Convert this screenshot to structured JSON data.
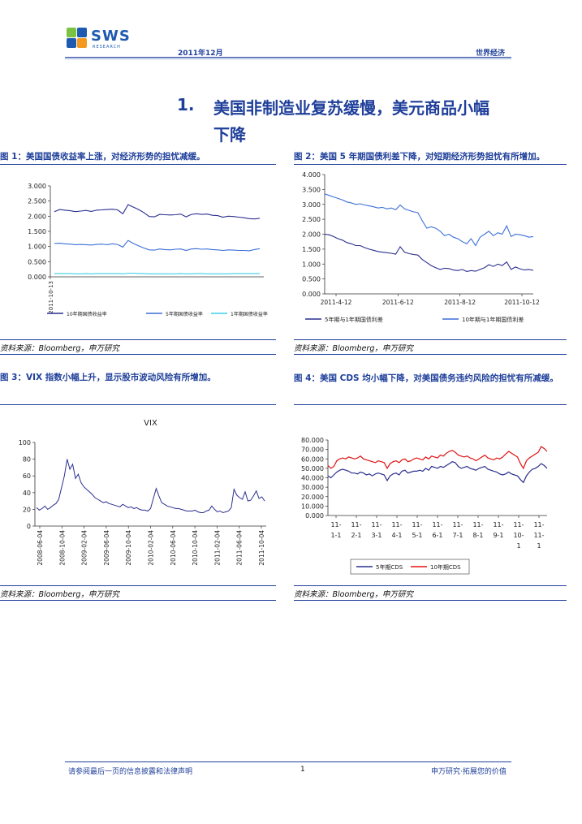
{
  "header": {
    "logo_text": "SWS",
    "logo_sub": "RESEARCH",
    "date": "2011年12月",
    "section": "世界经济"
  },
  "title": {
    "number": "1.",
    "line1": "美国非制造业复苏缓慢，美元商品小幅",
    "line2": "下降"
  },
  "figures": [
    {
      "caption": "图 1：美国国债收益率上涨，对经济形势的担忧减缓。",
      "source": "资料来源：Bloomberg，申万研究"
    },
    {
      "caption": "图 2：美国 5 年期国债利差下降，对短期经济形势担忧有所增加。",
      "source": "资料来源：Bloomberg，申万研究"
    },
    {
      "caption": "图 3：VIX 指数小幅上升，显示股市波动风险有所增加。",
      "source": "资料来源：Bloomberg，申万研究"
    },
    {
      "caption": "图 4：美国 CDS 均小幅下降，对美国债务违约风险的担忧有所减缓。",
      "source": "资料来源：Bloomberg，申万研究"
    }
  ],
  "footer": {
    "disclaimer": "请参阅最后一页的信息披露和法律声明",
    "page": "1",
    "slogan": "申万研究·拓展您的价值"
  },
  "colors": {
    "brand": "#1f3f9a",
    "logo_blue": "#1e5bb0",
    "logo_green": "#7cc242",
    "logo_orange": "#f39a1e",
    "navy_series": "#2b2f8f",
    "blue_series": "#3b6fd8",
    "cyan_series": "#3fd0e8",
    "red_series": "#e01010"
  },
  "chart_data": [
    {
      "type": "line",
      "title": "",
      "yticks": [
        "3.000",
        "2.500",
        "2.000",
        "1.500",
        "1.000",
        "0.500",
        "0.000"
      ],
      "ylim": [
        0,
        3
      ],
      "xticks": [
        "2011-10-13"
      ],
      "grid": false,
      "legend_position": "bottom",
      "series": [
        {
          "name": "10年期国债收益率",
          "color": "#2b2f8f",
          "values": [
            2.15,
            2.22,
            2.2,
            2.18,
            2.15,
            2.17,
            2.19,
            2.16,
            2.2,
            2.21,
            2.22,
            2.23,
            2.21,
            2.08,
            2.38,
            2.3,
            2.22,
            2.12,
            1.99,
            1.98,
            2.06,
            2.05,
            2.04,
            2.05,
            2.07,
            1.98,
            2.06,
            2.08,
            2.06,
            2.07,
            2.03,
            2.02,
            1.97,
            2.0,
            1.99,
            1.97,
            1.95,
            1.92,
            1.91,
            1.93
          ]
        },
        {
          "name": "5年期国债收益率",
          "color": "#3b6fd8",
          "values": [
            1.1,
            1.11,
            1.09,
            1.08,
            1.06,
            1.07,
            1.06,
            1.05,
            1.07,
            1.08,
            1.06,
            1.09,
            1.07,
            0.98,
            1.2,
            1.1,
            1.02,
            0.95,
            0.89,
            0.88,
            0.92,
            0.9,
            0.89,
            0.91,
            0.92,
            0.87,
            0.92,
            0.93,
            0.91,
            0.92,
            0.9,
            0.89,
            0.87,
            0.89,
            0.88,
            0.87,
            0.87,
            0.86,
            0.9,
            0.93
          ]
        },
        {
          "name": "1年期国债收益率",
          "color": "#3fd0e8",
          "values": [
            0.11,
            0.11,
            0.11,
            0.11,
            0.1,
            0.1,
            0.11,
            0.1,
            0.11,
            0.11,
            0.11,
            0.11,
            0.11,
            0.1,
            0.12,
            0.12,
            0.11,
            0.11,
            0.1,
            0.1,
            0.1,
            0.1,
            0.1,
            0.1,
            0.11,
            0.1,
            0.1,
            0.11,
            0.11,
            0.1,
            0.1,
            0.1,
            0.1,
            0.1,
            0.11,
            0.11,
            0.11,
            0.11,
            0.11,
            0.11
          ]
        }
      ]
    },
    {
      "type": "line",
      "title": "",
      "yticks": [
        "4.000",
        "3.500",
        "3.000",
        "2.500",
        "2.000",
        "1.500",
        "1.000",
        "0.500",
        "0.000"
      ],
      "ylim": [
        0,
        4
      ],
      "xticks": [
        "2011-4-12",
        "2011-6-12",
        "2011-8-12",
        "2011-10-12"
      ],
      "grid": false,
      "legend_position": "bottom",
      "series": [
        {
          "name": "5年期与1年期国债利差",
          "color": "#2b2f8f",
          "values": [
            2.0,
            1.98,
            1.92,
            1.85,
            1.8,
            1.72,
            1.68,
            1.62,
            1.62,
            1.55,
            1.5,
            1.46,
            1.42,
            1.4,
            1.38,
            1.36,
            1.33,
            1.58,
            1.4,
            1.35,
            1.32,
            1.3,
            1.15,
            1.05,
            0.95,
            0.88,
            0.82,
            0.86,
            0.85,
            0.8,
            0.78,
            0.82,
            0.75,
            0.78,
            0.76,
            0.82,
            0.88,
            0.98,
            0.92,
            1.0,
            0.95,
            1.07,
            0.82,
            0.9,
            0.84,
            0.8,
            0.82,
            0.79
          ]
        },
        {
          "name": "10年期与1年期国债利差",
          "color": "#3b6fd8",
          "values": [
            3.35,
            3.3,
            3.25,
            3.2,
            3.15,
            3.08,
            3.05,
            3.0,
            3.02,
            2.98,
            2.95,
            2.92,
            2.88,
            2.9,
            2.85,
            2.88,
            2.82,
            2.98,
            2.85,
            2.8,
            2.75,
            2.72,
            2.45,
            2.2,
            2.25,
            2.2,
            2.1,
            1.95,
            2.0,
            1.9,
            1.85,
            1.75,
            1.68,
            1.85,
            1.62,
            1.9,
            2.0,
            2.1,
            1.95,
            2.05,
            2.0,
            2.28,
            1.92,
            2.0,
            1.98,
            1.95,
            1.9,
            1.92
          ]
        }
      ]
    },
    {
      "type": "line",
      "title": "VIX",
      "yticks": [
        "100",
        "80",
        "60",
        "40",
        "20",
        "0"
      ],
      "ylim": [
        0,
        100
      ],
      "xticks": [
        "2008-06-04",
        "2008-10-04",
        "2009-02-04",
        "2009-06-04",
        "2009-10-04",
        "2010-02-04",
        "2010-06-04",
        "2010-10-04",
        "2011-02-04",
        "2011-06-04",
        "2011-10-04"
      ],
      "grid": false,
      "legend_position": "none",
      "series": [
        {
          "name": "VIX",
          "color": "#2b2f8f",
          "values": [
            22,
            19,
            21,
            24,
            20,
            22,
            25,
            27,
            32,
            46,
            60,
            80,
            68,
            74,
            57,
            62,
            52,
            47,
            44,
            41,
            38,
            34,
            32,
            30,
            28,
            29,
            27,
            26,
            25,
            24,
            23,
            26,
            24,
            22,
            23,
            21,
            22,
            20,
            19,
            19,
            18,
            21,
            33,
            45,
            36,
            28,
            26,
            24,
            23,
            22,
            21,
            21,
            20,
            19,
            18,
            18,
            18,
            19,
            17,
            16,
            16,
            18,
            19,
            24,
            20,
            17,
            18,
            16,
            17,
            18,
            22,
            44,
            37,
            34,
            32,
            41,
            30,
            31,
            36,
            42,
            33,
            35,
            30
          ]
        }
      ]
    },
    {
      "type": "line",
      "title": "",
      "yticks": [
        "80.000",
        "70.000",
        "60.000",
        "50.000",
        "40.000",
        "30.000",
        "20.000",
        "10.000",
        "0.000"
      ],
      "ylim": [
        0,
        80
      ],
      "xticks": [
        "11-1-1",
        "11-2-1",
        "11-3-1",
        "11-4-1",
        "11-5-1",
        "11-6-1",
        "11-7-1",
        "11-8-1",
        "11-9-1",
        "11-10-1",
        "11-11-1"
      ],
      "grid": false,
      "legend_position": "bottom",
      "series": [
        {
          "name": "5年期CDS",
          "color": "#2b2f8f",
          "values": [
            42,
            40,
            43,
            46,
            48,
            49,
            48,
            47,
            45,
            45,
            44,
            46,
            45,
            43,
            44,
            42,
            44,
            45,
            44,
            43,
            37,
            42,
            44,
            45,
            43,
            47,
            48,
            45,
            46,
            47,
            47,
            48,
            47,
            50,
            48,
            52,
            51,
            50,
            52,
            51,
            53,
            55,
            57,
            56,
            52,
            50,
            51,
            52,
            50,
            49,
            48,
            50,
            51,
            52,
            49,
            48,
            47,
            46,
            44,
            43,
            44,
            46,
            44,
            43,
            42,
            38,
            35,
            42,
            46,
            49,
            50,
            52,
            55,
            53,
            50
          ]
        },
        {
          "name": "10年期CDS",
          "color": "#e01010",
          "values": [
            53,
            50,
            52,
            58,
            60,
            61,
            60,
            62,
            61,
            60,
            61,
            63,
            60,
            59,
            58,
            57,
            56,
            58,
            57,
            56,
            50,
            55,
            57,
            58,
            56,
            59,
            60,
            57,
            58,
            60,
            61,
            60,
            59,
            62,
            60,
            63,
            62,
            61,
            64,
            63,
            66,
            68,
            69,
            67,
            64,
            63,
            62,
            63,
            61,
            60,
            58,
            60,
            62,
            64,
            61,
            60,
            59,
            61,
            60,
            62,
            65,
            68,
            66,
            64,
            62,
            55,
            50,
            58,
            61,
            63,
            65,
            67,
            73,
            71,
            68
          ]
        }
      ]
    }
  ]
}
